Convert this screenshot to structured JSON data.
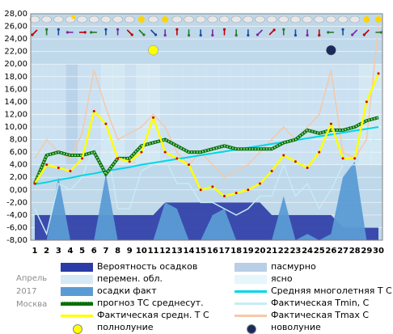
{
  "chart_data": {
    "type": "line",
    "x": [
      1,
      2,
      3,
      4,
      5,
      6,
      7,
      8,
      9,
      10,
      11,
      12,
      13,
      14,
      15,
      16,
      17,
      18,
      19,
      20,
      21,
      22,
      23,
      24,
      25,
      26,
      27,
      28,
      29,
      30
    ],
    "ylim": [
      -8,
      28
    ],
    "yticks": [
      "28,00",
      "26,00",
      "24,00",
      "22,00",
      "20,00",
      "18,00",
      "16,00",
      "14,00",
      "12,00",
      "10,00",
      "8,00",
      "6,00",
      "4,00",
      "2,00",
      "0,00",
      "-2,00",
      "-4,00",
      "-6,00",
      "-8,00"
    ],
    "xticks": [
      "1",
      "2",
      "3",
      "4",
      "5",
      "6",
      "7",
      "8",
      "9",
      "10",
      "11",
      "12",
      "13",
      "14",
      "15",
      "16",
      "17",
      "18",
      "19",
      "20",
      "21",
      "22",
      "23",
      "24",
      "25",
      "26",
      "27",
      "28",
      "29",
      "30"
    ],
    "series": [
      {
        "name": "Фактическая Tmax C",
        "color": "#f5c8a8",
        "values": [
          5,
          8,
          6,
          5,
          9,
          19,
          13,
          8,
          9,
          10,
          12,
          10,
          6,
          4,
          6,
          4,
          2,
          3,
          4,
          6,
          8,
          10,
          8,
          10,
          12,
          19,
          6,
          5,
          8,
          26
        ]
      },
      {
        "name": "Фактическая Tmin, С",
        "color": "#c6ecf4",
        "values": [
          -3,
          -7,
          1,
          0,
          2,
          7,
          8,
          -3,
          -3,
          3,
          4,
          5,
          1,
          1,
          -2,
          -2,
          -3,
          -4,
          -3,
          -1,
          -1,
          4,
          -1,
          1,
          -3,
          0,
          4,
          4,
          5,
          10
        ]
      },
      {
        "name": "Средняя многолетняя Т С",
        "color": "#00d7e5",
        "values": [
          0.9,
          1.2,
          1.6,
          1.9,
          2.3,
          2.6,
          3,
          3.3,
          3.6,
          4,
          4.3,
          4.6,
          4.9,
          5.2,
          5.5,
          5.8,
          6.1,
          6.4,
          6.7,
          7,
          7.3,
          7.6,
          7.9,
          8.2,
          8.5,
          8.8,
          9.1,
          9.4,
          9.7,
          10
        ]
      },
      {
        "name": "прогноз ТС среднесут.",
        "color": "#0b6f0b",
        "values": [
          1,
          5.5,
          6,
          5.5,
          5.5,
          6,
          2.5,
          5,
          5,
          7,
          7.5,
          8,
          7,
          6,
          6,
          6.5,
          7,
          6.5,
          6.5,
          6.5,
          6.5,
          7.5,
          8,
          9.5,
          9,
          9.5,
          9.5,
          10,
          11,
          11.5
        ]
      },
      {
        "name": "Фактическая средн. Т С",
        "color": "#ffff00",
        "values": [
          1,
          4,
          3.5,
          3,
          5,
          12.5,
          10.5,
          5,
          4.5,
          6,
          11.5,
          6,
          5,
          4,
          0,
          0.5,
          -1,
          -0.5,
          0,
          1,
          3,
          5.5,
          4.5,
          3.5,
          6,
          10.5,
          5,
          5,
          14,
          18.5
        ]
      },
      {
        "name": "осадки факт",
        "color": "#5b9bd5",
        "values": [
          -8,
          -8,
          2,
          -8,
          -8,
          -8,
          2.5,
          -8,
          -8,
          -8,
          -8,
          -2,
          -3,
          -8,
          -8,
          -4,
          -3,
          -8,
          -8,
          -8,
          -8,
          -1,
          -8,
          -7,
          -8,
          -7,
          2,
          4.5,
          -8,
          -8
        ]
      },
      {
        "name": "Вероятность осадков",
        "color": "#2b3ca6",
        "values": [
          -4,
          -4,
          -4,
          -4,
          -4,
          -4,
          -4,
          -4,
          -4,
          -4,
          -4,
          -2,
          -2,
          -2,
          -2,
          -2,
          -2,
          -2,
          -2,
          -2,
          -4,
          -4,
          -4,
          -4,
          -4,
          -4,
          -6,
          -6,
          -6,
          -6
        ]
      }
    ],
    "markers": [
      {
        "name": "полнолуние",
        "day": 11,
        "y": 22.2,
        "color": "#ffff00"
      },
      {
        "name": "новолуние",
        "day": 26,
        "y": 22.2,
        "color": "#1a2a5a"
      }
    ],
    "cloud_bands": [
      1,
      1,
      1,
      2,
      1,
      1,
      0,
      0,
      1,
      0,
      0,
      1,
      1,
      1,
      1,
      1,
      1,
      1,
      1,
      1,
      1,
      1,
      1,
      1,
      1,
      1,
      1,
      1,
      0,
      0
    ],
    "wind_icons": [
      "arrow-downleft",
      "arrow-up",
      "arrow-up",
      "arrow-left",
      "arrow-right",
      "arrow-left",
      "arrow-up",
      "arrow-up",
      "arrow-downright",
      "arrow-downright",
      "arrow-downright",
      "arrow-down",
      "arrow-up",
      "arrow-down",
      "arrow-down",
      "arrow-down",
      "arrow-up",
      "arrow-down",
      "arrow-down",
      "arrow-downleft",
      "arrow-upright",
      "arrow-up",
      "arrow-down",
      "arrow-down",
      "arrow-down",
      "arrow-left",
      "arrow-up",
      "arrow-downleft",
      "arrow-downleft",
      "arrow-right"
    ],
    "weather_icons": [
      "cloud",
      "cloud",
      "cloud",
      "cloud-sun",
      "cloud",
      "cloud",
      "cloud",
      "cloud",
      "cloud",
      "sun",
      "cloud",
      "sun",
      "cloud",
      "cloud",
      "cloud",
      "cloud",
      "cloud",
      "cloud",
      "cloud",
      "cloud",
      "cloud",
      "cloud",
      "cloud",
      "cloud",
      "cloud",
      "cloud",
      "cloud",
      "cloud",
      "sun",
      "sun"
    ]
  },
  "legend": [
    {
      "label": "Вероятность осадков",
      "kind": "box",
      "color": "#2b3ca6"
    },
    {
      "label": "пасмурно",
      "kind": "box",
      "color": "#b8cfe6"
    },
    {
      "label": "перемен. обл.",
      "kind": "box",
      "color": "#d6e9f5"
    },
    {
      "label": "ясно",
      "kind": "box",
      "color": "#e6f6fb"
    },
    {
      "label": "осадки факт",
      "kind": "box",
      "color": "#5b9bd5"
    },
    {
      "label": "Средняя многолетняя Т С",
      "kind": "line",
      "color": "#00d7e5"
    },
    {
      "label": "прогноз ТС среднесут.",
      "kind": "dotted",
      "color": "#0b6f0b"
    },
    {
      "label": "Фактическая Tmin, С",
      "kind": "line",
      "color": "#c6ecf4"
    },
    {
      "label": "Фактическая средн. Т С",
      "kind": "line",
      "color": "#ffff00"
    },
    {
      "label": "Фактическая Tmax C",
      "kind": "line",
      "color": "#f5c8a8"
    },
    {
      "label": "полнолуние",
      "kind": "dot",
      "color": "#ffff00"
    },
    {
      "label": "новолуние",
      "kind": "dot",
      "color": "#1a2a5a"
    }
  ],
  "meta": {
    "month": "Апрель",
    "year": "2017",
    "city": "Москва"
  }
}
